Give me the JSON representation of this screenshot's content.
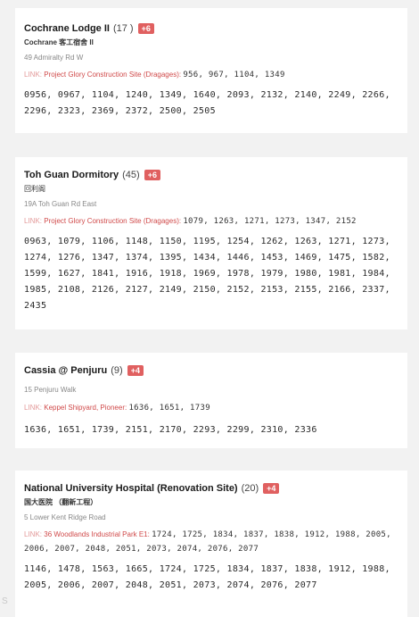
{
  "cards": [
    {
      "name": "Cochrane Lodge II",
      "count": "(17 )",
      "badge": "+6",
      "subname": "Cochrane 客工宿舍 II",
      "address": "49 Admiralty Rd W",
      "link_label": "LINK:",
      "link_site": "Project Glory Construction Site (Dragages):",
      "link_codes": "956,  967,  1104,  1349",
      "codes": "0956,  0967,  1104,  1240,  1349,  1640,  2093,  2132,  2140,  2249,  2266,  2296,  2323,  2369,  2372,  2500,  2505"
    },
    {
      "name": "Toh Guan Dormitory",
      "count": "(45)",
      "badge": "+6",
      "subname": "回利阁",
      "address": "19A  Toh Guan Rd East",
      "link_label": "LINK:",
      "link_site": "Project Glory Construction Site (Dragages):",
      "link_codes": "1079,  1263,  1271,  1273,  1347,  2152",
      "codes": "0963,  1079,  1106,  1148,  1150,  1195,  1254,  1262,  1263,  1271,  1273,  1274,  1276,  1347,  1374,  1395,  1434,  1446,  1453,  1469,  1475,  1582,  1599,  1627,  1841,  1916,  1918,  1969,  1978,  1979,  1980,  1981,  1984,  1985,  2108,  2126,  2127,  2149,  2150,  2152,  2153,  2155,  2166,  2337,  2435"
    },
    {
      "name": "Cassia @ Penjuru",
      "count": "(9)",
      "badge": "+4",
      "subname": "",
      "address": "15  Penjuru Walk",
      "link_label": "LINK:",
      "link_site": "Keppel Shipyard, Pioneer:",
      "link_codes": "1636,  1651,  1739",
      "codes": "1636,  1651,  1739,  2151,  2170,  2293,  2299,  2310,  2336"
    },
    {
      "name": "National University Hospital (Renovation Site)",
      "count": "(20)",
      "badge": "+4",
      "subname": "国大医院 （翻新工程）",
      "address": "5 Lower Kent Ridge Road",
      "link_label": "LINK:",
      "link_site": "36 Woodlands Industrial Park E1:",
      "link_codes": "1724,  1725,  1834,  1837,  1838,  1912,  1988,  2005,  2006,  2007,  2048,  2051,  2073,  2074,  2076,  2077",
      "codes": "1146,  1478,  1563,  1665,  1724,  1725,  1834,  1837,  1838,  1912,  1988,  2005,  2006,  2007,  2048,  2051,  2073,  2074,  2076,  2077"
    }
  ],
  "colors": {
    "badge": "#e06060",
    "link_site": "#d04a4a",
    "background": "#f2f2f2"
  },
  "watermark": "S"
}
